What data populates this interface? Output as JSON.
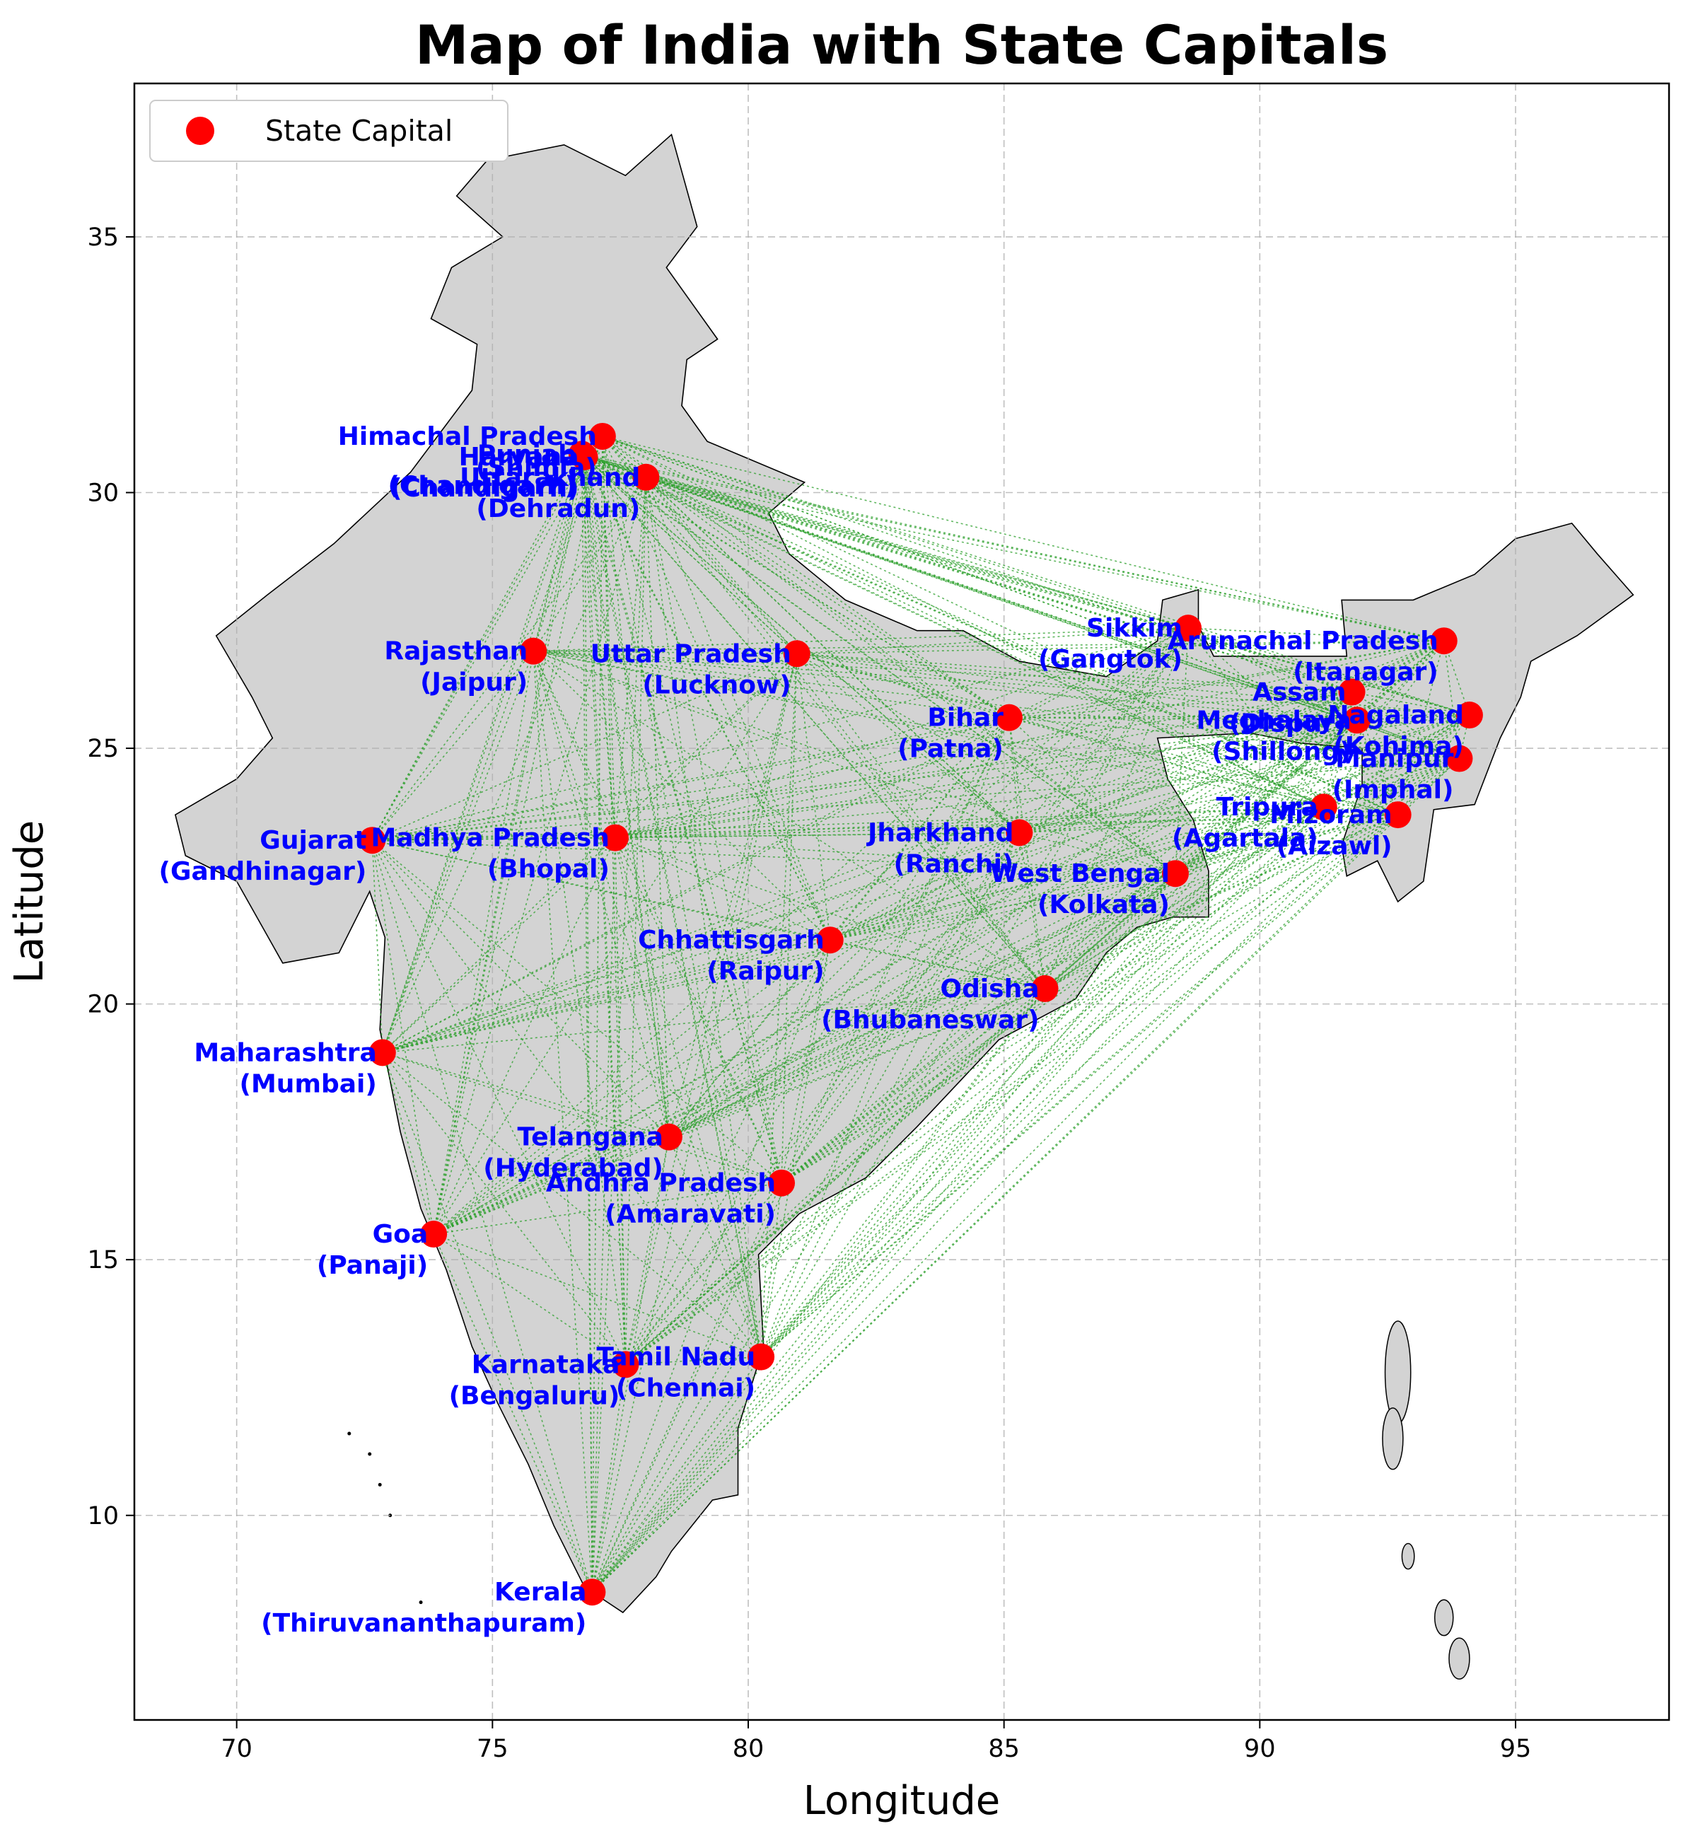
{
  "chart_data": {
    "type": "scatter",
    "title": "Map of India with State Capitals",
    "xlabel": "Longitude",
    "ylabel": "Latitude",
    "xlim": [
      68,
      98
    ],
    "ylim": [
      6,
      38
    ],
    "xticks": [
      70,
      75,
      80,
      85,
      90,
      95
    ],
    "yticks": [
      10,
      15,
      20,
      25,
      30,
      35
    ],
    "grid": true,
    "legend": {
      "placement": "top-left",
      "entries": [
        "State Capital"
      ]
    },
    "colors": {
      "marker": "#ff0000",
      "label": "#0000ff",
      "connector": "#2ca02c",
      "land": "#d3d3d3",
      "border": "#000000"
    },
    "series": [
      {
        "name": "State Capital",
        "points": [
          {
            "state": "Andhra Pradesh",
            "capital": "Amaravati",
            "lon": 80.65,
            "lat": 16.5
          },
          {
            "state": "Arunachal Pradesh",
            "capital": "Itanagar",
            "lon": 93.6,
            "lat": 27.1
          },
          {
            "state": "Assam",
            "capital": "Dispur",
            "lon": 91.8,
            "lat": 26.1
          },
          {
            "state": "Bihar",
            "capital": "Patna",
            "lon": 85.1,
            "lat": 25.6
          },
          {
            "state": "Chhattisgarh",
            "capital": "Raipur",
            "lon": 81.6,
            "lat": 21.25
          },
          {
            "state": "Goa",
            "capital": "Panaji",
            "lon": 73.85,
            "lat": 15.5
          },
          {
            "state": "Gujarat",
            "capital": "Gandhinagar",
            "lon": 72.65,
            "lat": 23.2
          },
          {
            "state": "Haryana",
            "capital": "Chandigarh",
            "lon": 76.8,
            "lat": 30.7
          },
          {
            "state": "Himachal Pradesh",
            "capital": "Shimla",
            "lon": 77.15,
            "lat": 31.1
          },
          {
            "state": "Jharkhand",
            "capital": "Ranchi",
            "lon": 85.3,
            "lat": 23.35
          },
          {
            "state": "Karnataka",
            "capital": "Bengaluru",
            "lon": 77.6,
            "lat": 12.95
          },
          {
            "state": "Kerala",
            "capital": "Thiruvananthapuram",
            "lon": 76.95,
            "lat": 8.5
          },
          {
            "state": "Madhya Pradesh",
            "capital": "Bhopal",
            "lon": 77.4,
            "lat": 23.25
          },
          {
            "state": "Maharashtra",
            "capital": "Mumbai",
            "lon": 72.85,
            "lat": 19.05
          },
          {
            "state": "Manipur",
            "capital": "Imphal",
            "lon": 93.9,
            "lat": 24.8
          },
          {
            "state": "Meghalaya",
            "capital": "Shillong",
            "lon": 91.9,
            "lat": 25.55
          },
          {
            "state": "Mizoram",
            "capital": "Aizawl",
            "lon": 92.7,
            "lat": 23.7
          },
          {
            "state": "Nagaland",
            "capital": "Kohima",
            "lon": 94.1,
            "lat": 25.65
          },
          {
            "state": "Odisha",
            "capital": "Bhubaneswar",
            "lon": 85.8,
            "lat": 20.3
          },
          {
            "state": "Punjab",
            "capital": "Chandigarh",
            "lon": 76.75,
            "lat": 30.75
          },
          {
            "state": "Rajasthan",
            "capital": "Jaipur",
            "lon": 75.8,
            "lat": 26.9
          },
          {
            "state": "Sikkim",
            "capital": "Gangtok",
            "lon": 88.6,
            "lat": 27.35
          },
          {
            "state": "Tamil Nadu",
            "capital": "Chennai",
            "lon": 80.25,
            "lat": 13.1
          },
          {
            "state": "Telangana",
            "capital": "Hyderabad",
            "lon": 78.45,
            "lat": 17.4
          },
          {
            "state": "Tripura",
            "capital": "Agartala",
            "lon": 91.25,
            "lat": 23.85
          },
          {
            "state": "Uttar Pradesh",
            "capital": "Lucknow",
            "lon": 80.95,
            "lat": 26.85
          },
          {
            "state": "Uttarakhand",
            "capital": "Dehradun",
            "lon": 78.0,
            "lat": 30.3
          },
          {
            "state": "West Bengal",
            "capital": "Kolkata",
            "lon": 88.35,
            "lat": 22.55
          }
        ]
      }
    ]
  }
}
